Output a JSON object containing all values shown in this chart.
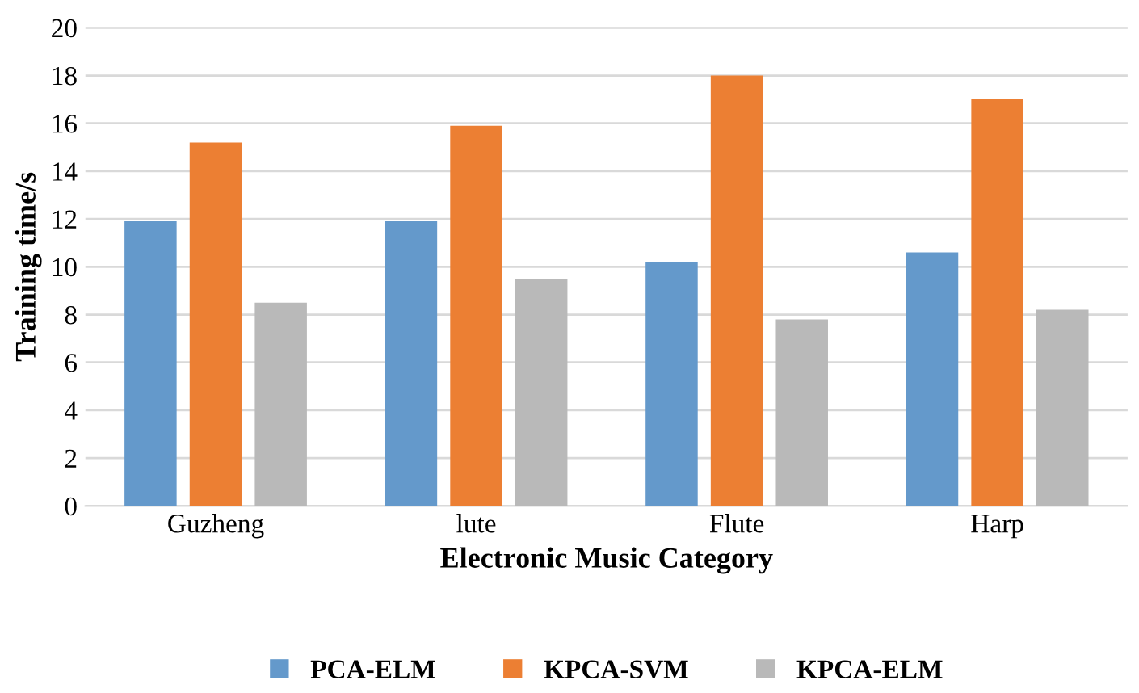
{
  "chart_data": {
    "type": "bar",
    "xlabel": "Electronic Music Category",
    "ylabel": "Training time/s",
    "categories": [
      "Guzheng",
      "lute",
      "Flute",
      "Harp"
    ],
    "series": [
      {
        "name": "PCA-ELM",
        "color": "#6499cb",
        "values": [
          11.9,
          11.9,
          10.2,
          10.6
        ]
      },
      {
        "name": "KPCA-SVM",
        "color": "#ec7f33",
        "values": [
          15.2,
          15.9,
          18.0,
          17.0
        ]
      },
      {
        "name": "KPCA-ELM",
        "color": "#b9b9b9",
        "values": [
          8.5,
          9.5,
          7.8,
          8.2
        ]
      }
    ],
    "ylim": [
      0,
      20
    ],
    "yticks": [
      0,
      2,
      4,
      6,
      8,
      10,
      12,
      14,
      16,
      18,
      20
    ],
    "grid": "y",
    "legend": "bottom"
  }
}
